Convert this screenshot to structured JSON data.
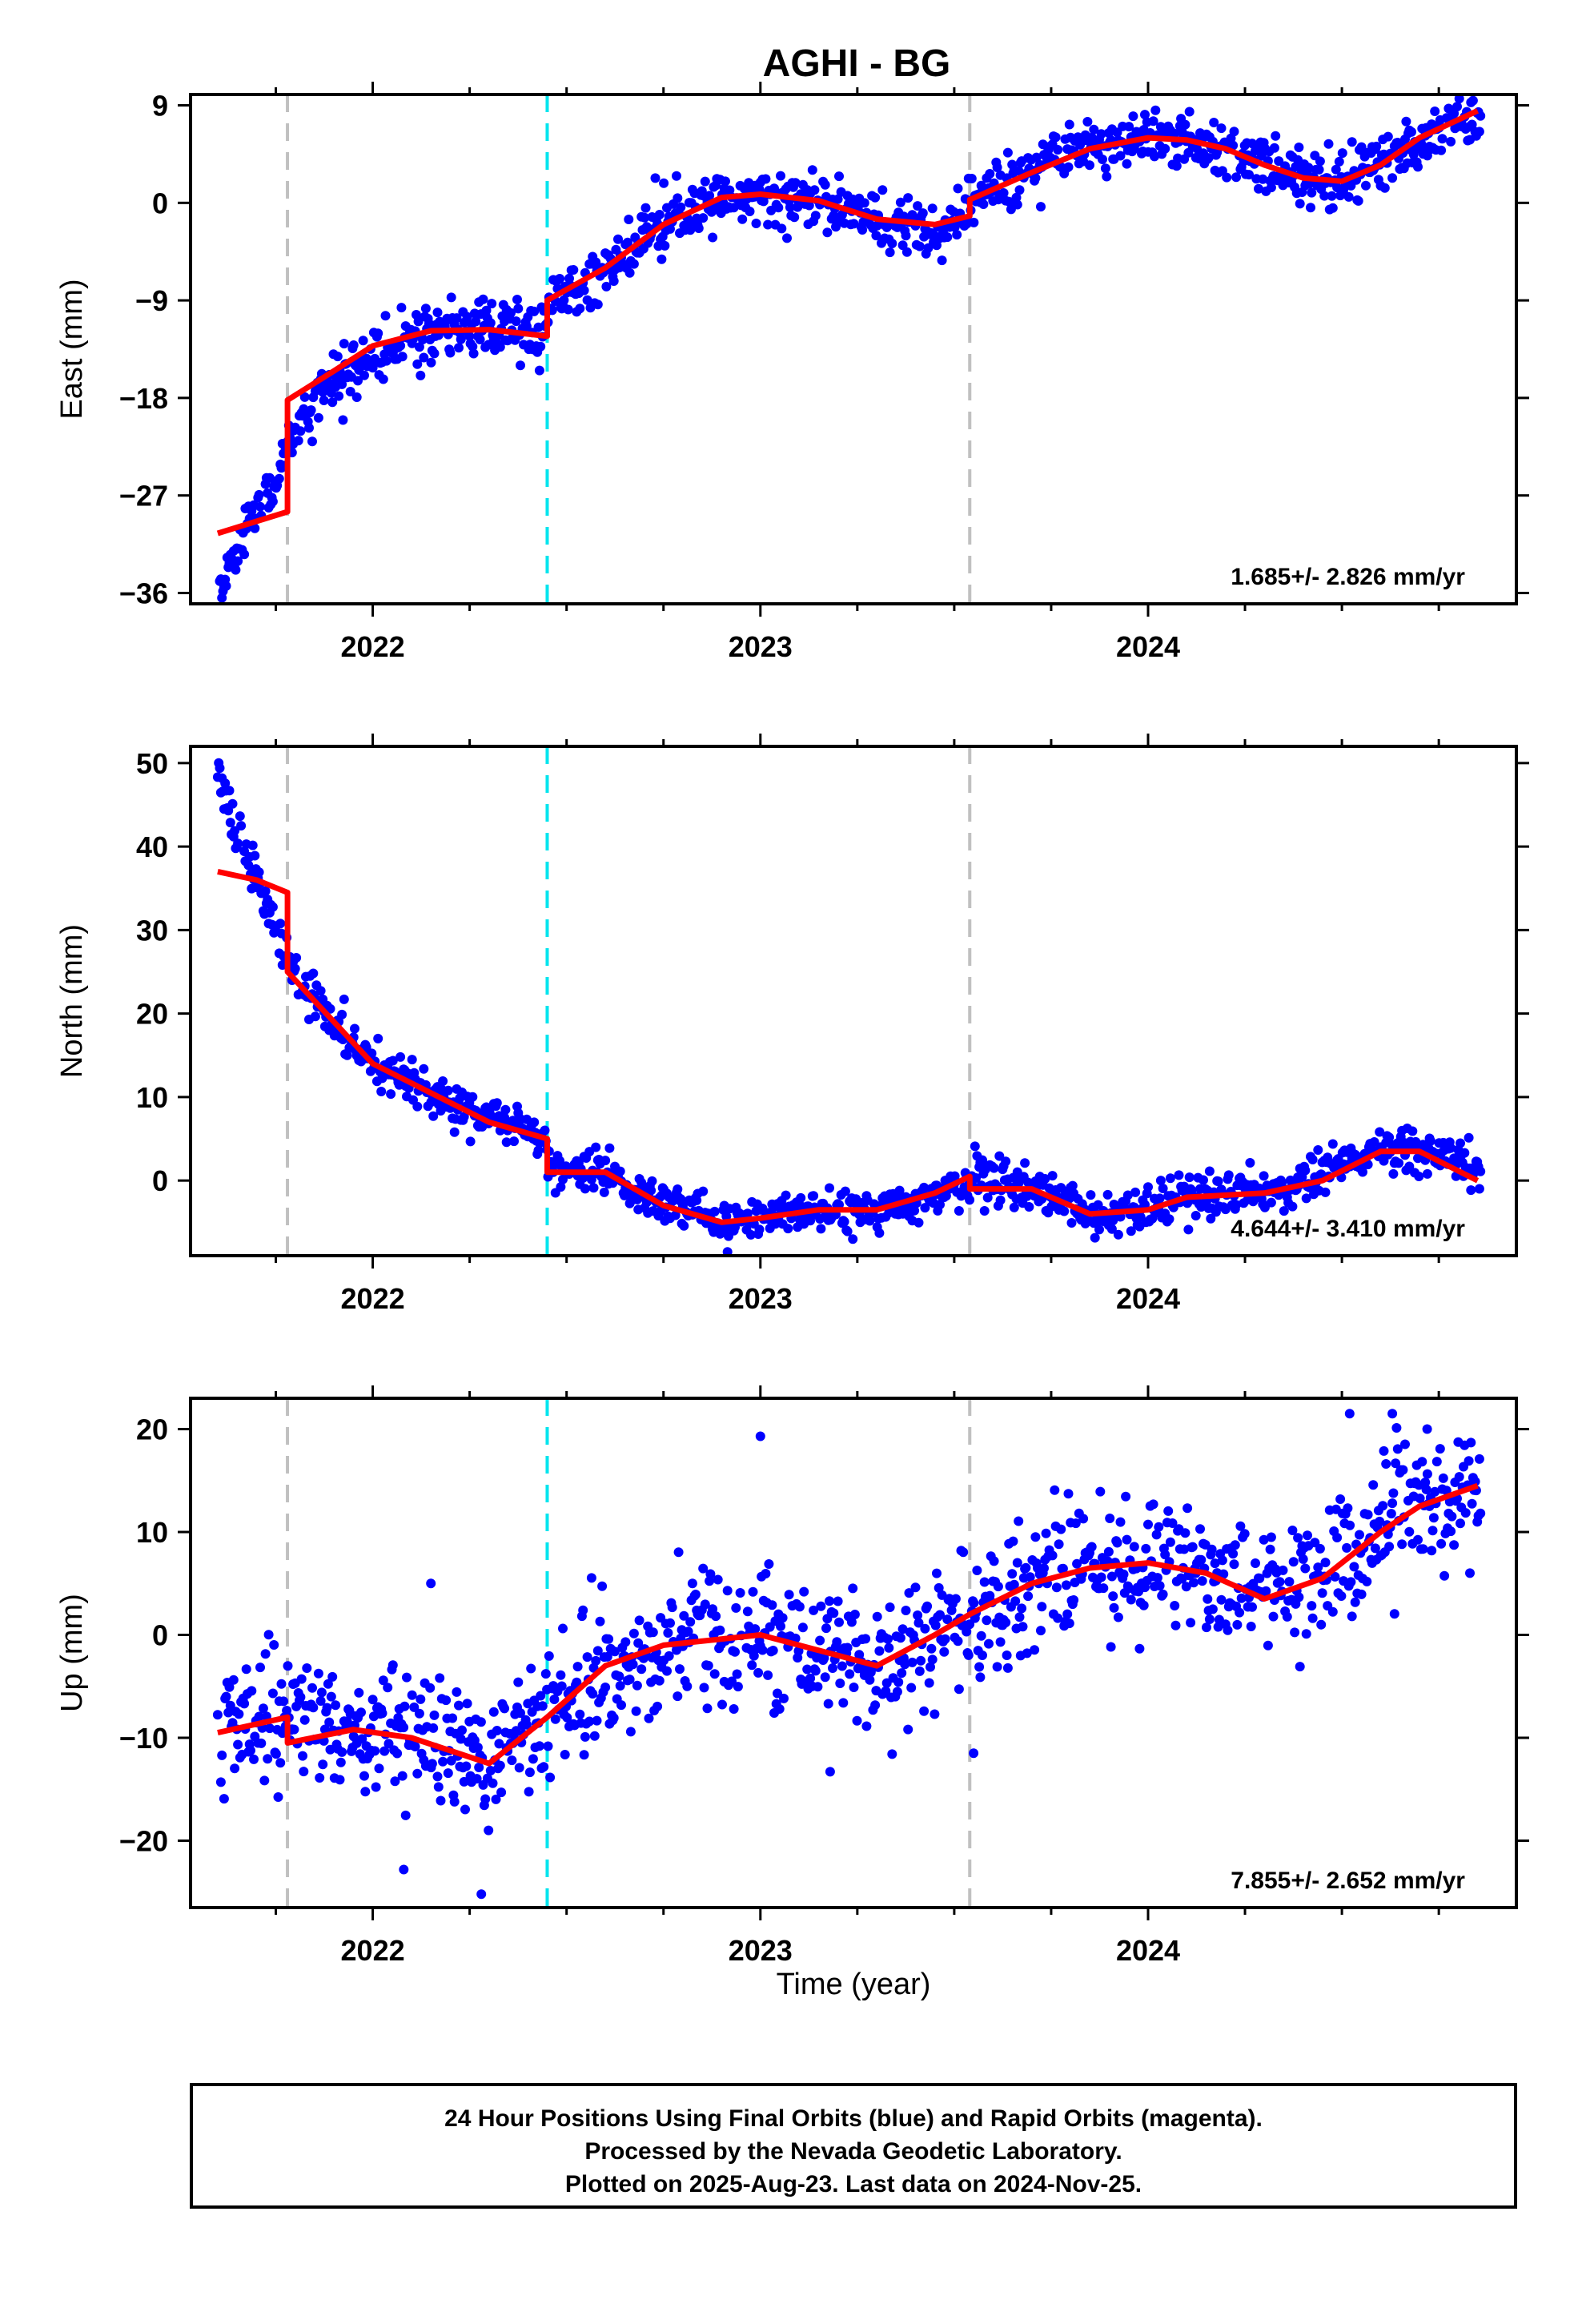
{
  "title": "AGHI - BG",
  "xlabel": "Time (year)",
  "footer": {
    "lines": [
      "24 Hour Positions Using Final Orbits (blue) and Rapid Orbits (magenta).",
      "Processed by the Nevada Geodetic Laboratory.",
      "Plotted on 2025-Aug-23. Last data on 2024-Nov-25."
    ]
  },
  "colors": {
    "data": "#0000ff",
    "model": "#ff0000",
    "event_gray": "#c0c0c0",
    "event_cyan": "#00e5ee"
  },
  "chart_data": [
    {
      "type": "scatter",
      "ylabel": "East (mm)",
      "rate": "1.685+/- 2.826 mm/yr",
      "xlim": [
        2021.53,
        2024.95
      ],
      "ylim": [
        -37,
        10
      ],
      "xticks": [
        2022,
        2023,
        2024
      ],
      "xtick_labels": [
        "2022",
        "2023",
        "2024"
      ],
      "yticks": [
        -36,
        -27,
        -18,
        -9,
        0,
        9
      ],
      "ytick_labels": [
        "−36",
        "−27",
        "−18",
        "−9",
        "0",
        "9"
      ],
      "events": [
        {
          "x": 2021.78,
          "kind": "gray"
        },
        {
          "x": 2022.45,
          "kind": "cyan"
        },
        {
          "x": 2023.54,
          "kind": "gray"
        }
      ],
      "model": [
        [
          2021.6,
          -30.5
        ],
        [
          2021.78,
          -28.5
        ],
        [
          2021.78,
          -18.2
        ],
        [
          2021.9,
          -15.5
        ],
        [
          2022.0,
          -13.2
        ],
        [
          2022.15,
          -11.8
        ],
        [
          2022.3,
          -11.7
        ],
        [
          2022.45,
          -12.3
        ],
        [
          2022.45,
          -9.0
        ],
        [
          2022.6,
          -6.0
        ],
        [
          2022.75,
          -2.0
        ],
        [
          2022.9,
          0.5
        ],
        [
          2023.0,
          0.8
        ],
        [
          2023.15,
          0.2
        ],
        [
          2023.3,
          -1.5
        ],
        [
          2023.45,
          -2.0
        ],
        [
          2023.54,
          -1.2
        ],
        [
          2023.54,
          0.3
        ],
        [
          2023.7,
          2.8
        ],
        [
          2023.85,
          5.0
        ],
        [
          2024.0,
          6.0
        ],
        [
          2024.1,
          5.8
        ],
        [
          2024.2,
          5.0
        ],
        [
          2024.3,
          3.5
        ],
        [
          2024.4,
          2.3
        ],
        [
          2024.5,
          2.0
        ],
        [
          2024.6,
          3.5
        ],
        [
          2024.7,
          6.0
        ],
        [
          2024.85,
          8.5
        ]
      ],
      "anchors": [
        [
          2021.6,
          -36.0
        ],
        [
          2021.65,
          -32.0
        ],
        [
          2021.7,
          -28.5
        ],
        [
          2021.76,
          -25.0
        ],
        [
          2021.8,
          -21.0
        ],
        [
          2021.85,
          -18.5
        ],
        [
          2021.9,
          -16.5
        ],
        [
          2022.0,
          -14.0
        ],
        [
          2022.1,
          -12.5
        ],
        [
          2022.2,
          -11.5
        ],
        [
          2022.3,
          -11.5
        ],
        [
          2022.44,
          -12.0
        ],
        [
          2022.46,
          -9.0
        ],
        [
          2022.6,
          -6.0
        ],
        [
          2022.75,
          -2.0
        ],
        [
          2022.9,
          0.5
        ],
        [
          2023.0,
          0.8
        ],
        [
          2023.15,
          0.2
        ],
        [
          2023.3,
          -1.5
        ],
        [
          2023.45,
          -2.5
        ],
        [
          2023.53,
          -1.5
        ],
        [
          2023.55,
          0.5
        ],
        [
          2023.7,
          3.0
        ],
        [
          2023.85,
          5.0
        ],
        [
          2024.0,
          6.0
        ],
        [
          2024.2,
          5.0
        ],
        [
          2024.3,
          3.5
        ],
        [
          2024.4,
          2.3
        ],
        [
          2024.5,
          2.0
        ],
        [
          2024.6,
          3.5
        ],
        [
          2024.7,
          5.5
        ],
        [
          2024.85,
          8.0
        ]
      ],
      "scatter": 1.3,
      "seed": 11
    },
    {
      "type": "scatter",
      "ylabel": "North (mm)",
      "rate": "4.644+/- 3.410 mm/yr",
      "xlim": [
        2021.53,
        2024.95
      ],
      "ylim": [
        -9,
        52
      ],
      "xticks": [
        2022,
        2023,
        2024
      ],
      "xtick_labels": [
        "2022",
        "2023",
        "2024"
      ],
      "yticks": [
        0,
        10,
        20,
        30,
        40,
        50
      ],
      "ytick_labels": [
        "0",
        "10",
        "20",
        "30",
        "40",
        "50"
      ],
      "events": [
        {
          "x": 2021.78,
          "kind": "gray"
        },
        {
          "x": 2022.45,
          "kind": "cyan"
        },
        {
          "x": 2023.54,
          "kind": "gray"
        }
      ],
      "model": [
        [
          2021.6,
          37.0
        ],
        [
          2021.7,
          36.0
        ],
        [
          2021.78,
          34.5
        ],
        [
          2021.78,
          25.0
        ],
        [
          2021.9,
          19.0
        ],
        [
          2022.0,
          14.0
        ],
        [
          2022.15,
          10.5
        ],
        [
          2022.3,
          7.0
        ],
        [
          2022.45,
          5.0
        ],
        [
          2022.45,
          1.0
        ],
        [
          2022.6,
          1.0
        ],
        [
          2022.75,
          -3.0
        ],
        [
          2022.9,
          -5.0
        ],
        [
          2023.0,
          -4.5
        ],
        [
          2023.15,
          -3.5
        ],
        [
          2023.3,
          -3.5
        ],
        [
          2023.45,
          -1.5
        ],
        [
          2023.54,
          0.5
        ],
        [
          2023.54,
          -1.0
        ],
        [
          2023.7,
          -1.0
        ],
        [
          2023.85,
          -4.0
        ],
        [
          2024.0,
          -3.5
        ],
        [
          2024.1,
          -2.0
        ],
        [
          2024.3,
          -1.5
        ],
        [
          2024.45,
          0.0
        ],
        [
          2024.6,
          3.5
        ],
        [
          2024.7,
          3.5
        ],
        [
          2024.85,
          0.0
        ]
      ],
      "anchors": [
        [
          2021.6,
          50.0
        ],
        [
          2021.65,
          42.0
        ],
        [
          2021.7,
          36.0
        ],
        [
          2021.76,
          29.0
        ],
        [
          2021.8,
          24.0
        ],
        [
          2021.9,
          19.0
        ],
        [
          2022.0,
          14.0
        ],
        [
          2022.15,
          10.5
        ],
        [
          2022.3,
          7.5
        ],
        [
          2022.44,
          5.0
        ],
        [
          2022.46,
          1.5
        ],
        [
          2022.6,
          1.0
        ],
        [
          2022.75,
          -3.0
        ],
        [
          2022.9,
          -5.0
        ],
        [
          2023.0,
          -4.5
        ],
        [
          2023.15,
          -3.5
        ],
        [
          2023.3,
          -3.5
        ],
        [
          2023.45,
          -1.5
        ],
        [
          2023.55,
          0.0
        ],
        [
          2023.7,
          -1.0
        ],
        [
          2023.85,
          -4.0
        ],
        [
          2024.0,
          -3.5
        ],
        [
          2024.1,
          -2.0
        ],
        [
          2024.3,
          -1.5
        ],
        [
          2024.45,
          0.5
        ],
        [
          2024.6,
          3.5
        ],
        [
          2024.7,
          3.5
        ],
        [
          2024.85,
          1.5
        ]
      ],
      "scatter": 1.3,
      "seed": 23
    },
    {
      "type": "scatter",
      "ylabel": "Up (mm)",
      "rate": "7.855+/- 2.652 mm/yr",
      "xlim": [
        2021.53,
        2024.95
      ],
      "ylim": [
        -26.5,
        23
      ],
      "xticks": [
        2022,
        2023,
        2024
      ],
      "xtick_labels": [
        "2022",
        "2023",
        "2024"
      ],
      "yticks": [
        -20,
        -10,
        0,
        10,
        20
      ],
      "ytick_labels": [
        "−20",
        "−10",
        "0",
        "10",
        "20"
      ],
      "events": [
        {
          "x": 2021.78,
          "kind": "gray"
        },
        {
          "x": 2022.45,
          "kind": "cyan"
        },
        {
          "x": 2023.54,
          "kind": "gray"
        }
      ],
      "model": [
        [
          2021.6,
          -9.5
        ],
        [
          2021.78,
          -8.0
        ],
        [
          2021.78,
          -10.5
        ],
        [
          2021.95,
          -9.2
        ],
        [
          2022.1,
          -10.0
        ],
        [
          2022.3,
          -12.5
        ],
        [
          2022.45,
          -8.0
        ],
        [
          2022.6,
          -3.0
        ],
        [
          2022.75,
          -1.0
        ],
        [
          2023.0,
          0.0
        ],
        [
          2023.15,
          -1.5
        ],
        [
          2023.3,
          -3.0
        ],
        [
          2023.45,
          0.0
        ],
        [
          2023.54,
          2.0
        ],
        [
          2023.7,
          5.0
        ],
        [
          2023.85,
          6.5
        ],
        [
          2024.0,
          7.0
        ],
        [
          2024.15,
          6.0
        ],
        [
          2024.3,
          3.5
        ],
        [
          2024.45,
          5.5
        ],
        [
          2024.6,
          10.0
        ],
        [
          2024.7,
          12.5
        ],
        [
          2024.85,
          14.5
        ]
      ],
      "anchors": [
        [
          2021.6,
          -9.5
        ],
        [
          2021.78,
          -8.0
        ],
        [
          2021.95,
          -9.2
        ],
        [
          2022.1,
          -10.0
        ],
        [
          2022.3,
          -12.5
        ],
        [
          2022.45,
          -8.0
        ],
        [
          2022.6,
          -3.0
        ],
        [
          2022.75,
          -1.0
        ],
        [
          2023.0,
          0.0
        ],
        [
          2023.15,
          -1.5
        ],
        [
          2023.3,
          -3.0
        ],
        [
          2023.45,
          0.0
        ],
        [
          2023.54,
          2.0
        ],
        [
          2023.7,
          5.0
        ],
        [
          2023.85,
          6.5
        ],
        [
          2024.0,
          7.0
        ],
        [
          2024.15,
          6.0
        ],
        [
          2024.3,
          3.5
        ],
        [
          2024.45,
          5.5
        ],
        [
          2024.6,
          10.0
        ],
        [
          2024.7,
          12.5
        ],
        [
          2024.85,
          14.5
        ]
      ],
      "scatter": 3.2,
      "seed": 37,
      "outliers": [
        [
          2022.15,
          5.0
        ],
        [
          2023.0,
          19.3
        ],
        [
          2023.18,
          -13.3
        ],
        [
          2023.55,
          -11.5
        ],
        [
          2022.08,
          -22.8
        ],
        [
          2022.28,
          -25.2
        ],
        [
          2024.52,
          21.5
        ],
        [
          2024.63,
          21.5
        ],
        [
          2024.72,
          20.0
        ]
      ]
    }
  ]
}
